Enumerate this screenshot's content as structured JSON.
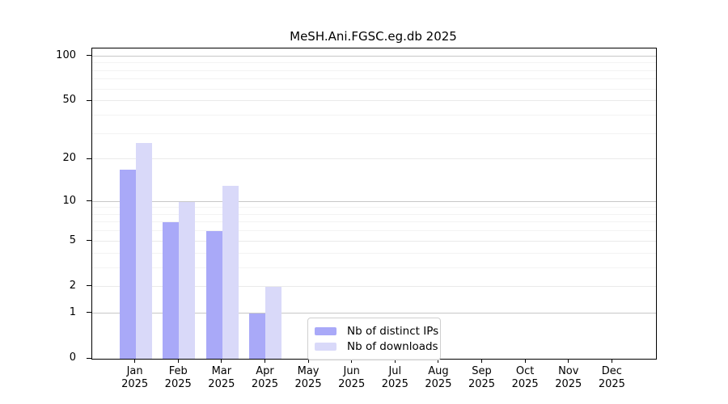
{
  "title": "MeSH.Ani.FGSC.eg.db 2025",
  "legend": {
    "items": [
      {
        "label": "Nb of distinct IPs",
        "color": "#a9a9f8"
      },
      {
        "label": "Nb of downloads",
        "color": "#d9d9f9"
      }
    ]
  },
  "axes": {
    "year_label": "2025",
    "months": [
      "Jan",
      "Feb",
      "Mar",
      "Apr",
      "May",
      "Jun",
      "Jul",
      "Aug",
      "Sep",
      "Oct",
      "Nov",
      "Dec"
    ],
    "yticks": [
      0,
      1,
      2,
      5,
      10,
      20,
      50,
      100
    ],
    "minor_yticks": [
      3,
      4,
      6,
      7,
      8,
      9,
      30,
      40,
      60,
      70,
      80,
      90
    ]
  },
  "chart_data": {
    "type": "bar",
    "title": "MeSH.Ani.FGSC.eg.db 2025",
    "categories": [
      "Jan 2025",
      "Feb 2025",
      "Mar 2025",
      "Apr 2025",
      "May 2025",
      "Jun 2025",
      "Jul 2025",
      "Aug 2025",
      "Sep 2025",
      "Oct 2025",
      "Nov 2025",
      "Dec 2025"
    ],
    "series": [
      {
        "name": "Nb of distinct IPs",
        "color": "#a9a9f8",
        "values": [
          17,
          7,
          6,
          1,
          0,
          0,
          0,
          0,
          0,
          0,
          0,
          0
        ]
      },
      {
        "name": "Nb of downloads",
        "color": "#d9d9f9",
        "values": [
          26,
          10,
          13,
          2,
          0,
          0,
          0,
          0,
          0,
          0,
          0,
          0
        ]
      }
    ],
    "yscale": "log1p",
    "ylim": [
      0,
      113
    ],
    "yticks": [
      0,
      1,
      2,
      5,
      10,
      20,
      50,
      100
    ],
    "xlabel": "",
    "ylabel": "",
    "grid": true,
    "legend_position": "inside lower-center"
  },
  "colors": {
    "bar_ips": "#a9a9f8",
    "bar_downloads": "#d9d9f9",
    "grid_power10": "#c8c8c8",
    "grid_major": "#eaeaea",
    "grid_minor": "#f3f3f3",
    "spine": "#000000",
    "background": "#ffffff"
  }
}
